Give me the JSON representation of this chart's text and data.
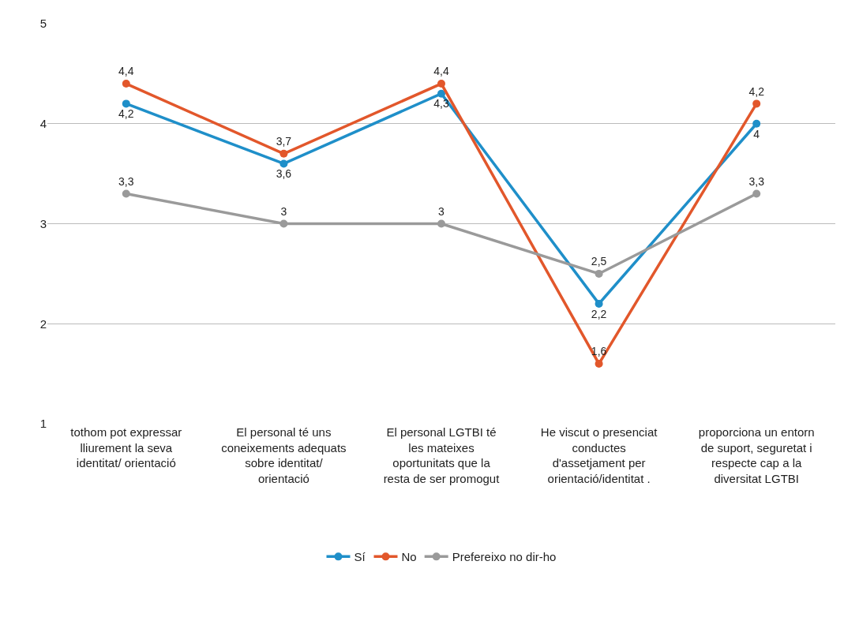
{
  "chart_data": {
    "type": "line",
    "categories": [
      "tothom pot expressar lliurement la seva identitat/ orientació",
      "El personal té uns coneixements adequats sobre identitat/ orientació",
      "El personal LGTBI té les mateixes oportunitats que la resta de ser promogut",
      "He viscut o presenciat conductes d'assetjament per orientació/identitat .",
      "proporciona un entorn de suport, seguretat i respecte cap a la diversitat LGTBI"
    ],
    "series": [
      {
        "name": "Sí",
        "color": "#1f8fc9",
        "values": [
          4.2,
          3.6,
          4.3,
          2.2,
          4
        ],
        "value_labels": [
          "4,2",
          "3,6",
          "4,3",
          "2,2",
          "4"
        ]
      },
      {
        "name": "No",
        "color": "#e2572b",
        "values": [
          4.4,
          3.7,
          4.4,
          1.6,
          4.2
        ],
        "value_labels": [
          "4,4",
          "3,7",
          "4,4",
          "1,6",
          "4,2"
        ]
      },
      {
        "name": "Prefereixo no dir-ho",
        "color": "#9a9a9a",
        "values": [
          3.3,
          3,
          3,
          2.5,
          3.3
        ],
        "value_labels": [
          "3,3",
          "3",
          "3",
          "2,5",
          "3,3"
        ]
      }
    ],
    "ylim": [
      1,
      5
    ],
    "yticks": [
      1,
      2,
      3,
      4,
      5
    ],
    "grid": "y",
    "legend": "bottom",
    "marker": "circle",
    "line_style": "solid"
  }
}
